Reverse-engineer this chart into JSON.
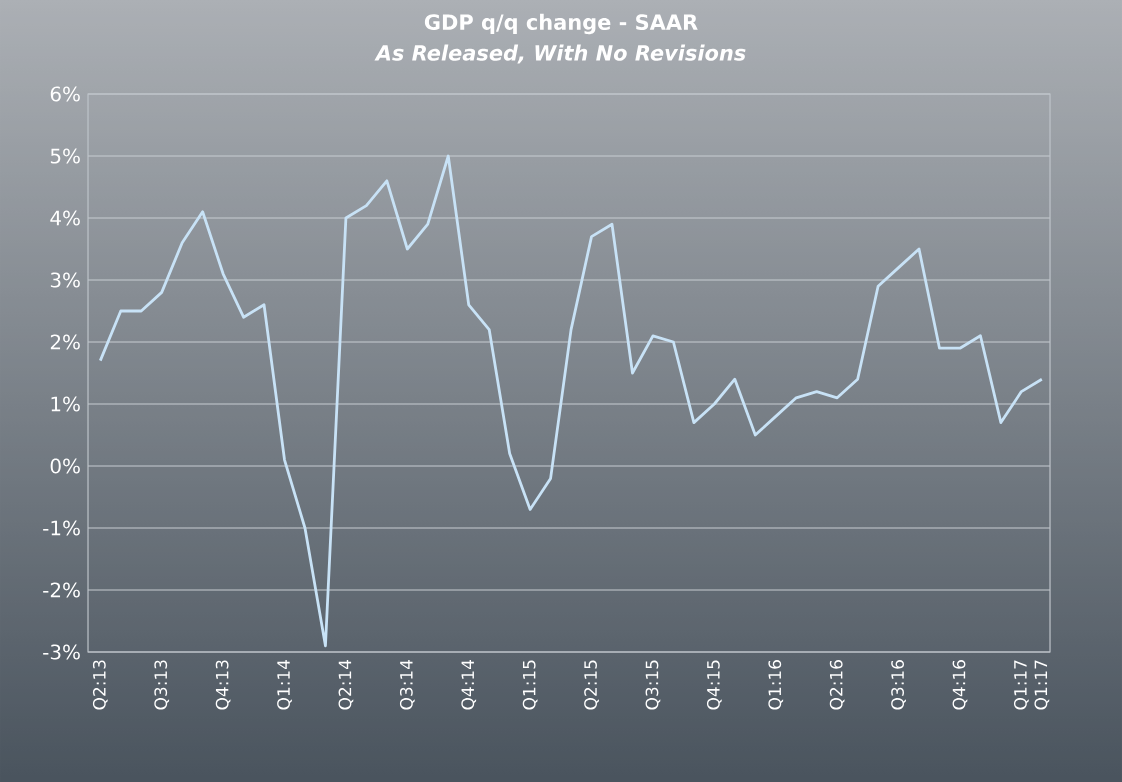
{
  "chart_data": {
    "type": "line",
    "title": "GDP q/q change - SAAR",
    "subtitle": "*As Released, With No Revisions*",
    "categories": [
      "Q2:13",
      null,
      null,
      "Q3:13",
      null,
      null,
      "Q4:13",
      null,
      null,
      "Q1:14",
      null,
      null,
      "Q2:14",
      null,
      null,
      "Q3:14",
      null,
      null,
      "Q4:14",
      null,
      null,
      "Q1:15",
      null,
      null,
      "Q2:15",
      null,
      null,
      "Q3:15",
      null,
      null,
      "Q4:15",
      null,
      null,
      "Q1:16",
      null,
      null,
      "Q2:16",
      null,
      null,
      "Q3:16",
      null,
      null,
      "Q4:16",
      null,
      null,
      "Q1:17",
      "Q1:17"
    ],
    "values": [
      1.7,
      2.5,
      2.5,
      2.8,
      3.6,
      4.1,
      3.1,
      2.4,
      2.6,
      0.1,
      -1.0,
      -2.9,
      4.0,
      4.2,
      4.6,
      3.5,
      3.9,
      5.0,
      2.6,
      2.2,
      0.2,
      -0.7,
      -0.2,
      2.2,
      3.7,
      3.9,
      1.5,
      2.1,
      2.0,
      0.7,
      1.0,
      1.4,
      0.5,
      0.8,
      1.1,
      1.2,
      1.1,
      1.4,
      2.9,
      3.2,
      3.5,
      1.9,
      1.9,
      2.1,
      0.7,
      1.2,
      1.4
    ],
    "color": "#c8e2f6",
    "ylim": [
      -3,
      6
    ],
    "yticks": [
      {
        "value": -3,
        "label": "-3%"
      },
      {
        "value": -2,
        "label": "-2%"
      },
      {
        "value": -1,
        "label": "-1%"
      },
      {
        "value": 0,
        "label": "0%"
      },
      {
        "value": 1,
        "label": "1%"
      },
      {
        "value": 2,
        "label": "2%"
      },
      {
        "value": 3,
        "label": "3%"
      },
      {
        "value": 4,
        "label": "4%"
      },
      {
        "value": 5,
        "label": "5%"
      },
      {
        "value": 6,
        "label": "6%"
      }
    ],
    "grid": "y",
    "marker": "none",
    "line_style": "solid"
  }
}
